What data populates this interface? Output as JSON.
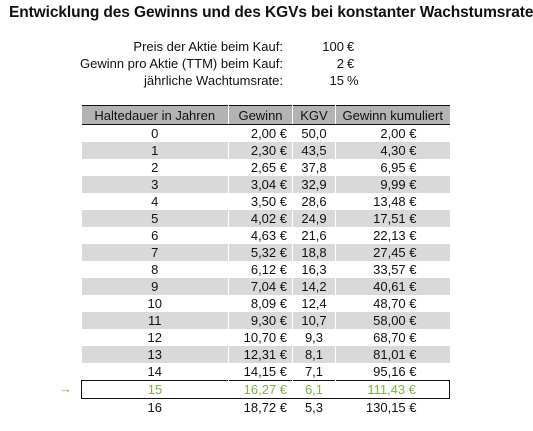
{
  "title": "Entwicklung des Gewinns und des KGVs bei konstanter Wachstumsrate",
  "params": [
    {
      "label": "Preis der Aktie beim Kauf:",
      "value": "100",
      "unit": "€"
    },
    {
      "label": "Gewinn pro Aktie (TTM) beim Kauf:",
      "value": "2",
      "unit": "€"
    },
    {
      "label": "jährliche Wachtumsrate:",
      "value": "15",
      "unit": "%"
    }
  ],
  "table": {
    "headers": [
      "Haltedauer in Jahren",
      "Gewinn",
      "KGV",
      "Gewinn kumuliert"
    ],
    "rows": [
      [
        "0",
        "2,00 €",
        "50,0",
        "2,00 €"
      ],
      [
        "1",
        "2,30 €",
        "43,5",
        "4,30 €"
      ],
      [
        "2",
        "2,65 €",
        "37,8",
        "6,95 €"
      ],
      [
        "3",
        "3,04 €",
        "32,9",
        "9,99 €"
      ],
      [
        "4",
        "3,50 €",
        "28,6",
        "13,48 €"
      ],
      [
        "5",
        "4,02 €",
        "24,9",
        "17,51 €"
      ],
      [
        "6",
        "4,63 €",
        "21,6",
        "22,13 €"
      ],
      [
        "7",
        "5,32 €",
        "18,8",
        "27,45 €"
      ],
      [
        "8",
        "6,12 €",
        "16,3",
        "33,57 €"
      ],
      [
        "9",
        "7,04 €",
        "14,2",
        "40,61 €"
      ],
      [
        "10",
        "8,09 €",
        "12,4",
        "48,70 €"
      ],
      [
        "11",
        "9,30 €",
        "10,7",
        "58,00 €"
      ],
      [
        "12",
        "10,70 €",
        "9,3",
        "68,70 €"
      ],
      [
        "13",
        "12,31 €",
        "8,1",
        "81,01 €"
      ],
      [
        "14",
        "14,15 €",
        "7,1",
        "95,16 €"
      ],
      [
        "15",
        "16,27 €",
        "6,1",
        "111,43 €"
      ],
      [
        "16",
        "18,72 €",
        "5,3",
        "130,15 €"
      ]
    ],
    "highlight_row_index": 15,
    "highlight_marker": "→"
  },
  "colors": {
    "header_bg": "#b3b3b3",
    "stripe_bg": "#d9d9d9",
    "highlight_text": "#7cb342"
  }
}
